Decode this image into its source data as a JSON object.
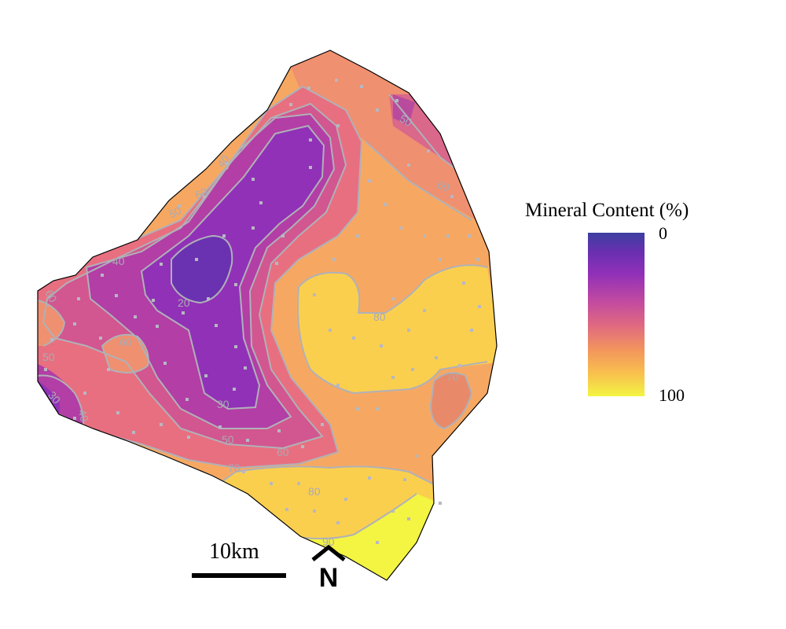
{
  "legend": {
    "title": "Mineral Content (%)",
    "min_label": "0",
    "max_label": "100",
    "colors": [
      "#3b3fa0",
      "#6a2fb0",
      "#9030b8",
      "#c24aa0",
      "#e06a80",
      "#f3965c",
      "#f8c04e",
      "#f4f443"
    ]
  },
  "scale_bar": {
    "label": "10km"
  },
  "north_arrow": {
    "label": "N"
  },
  "contour_labels": [
    "20",
    "30",
    "30",
    "40",
    "40",
    "40",
    "50",
    "50",
    "50",
    "50",
    "60",
    "60",
    "60",
    "60",
    "60",
    "70",
    "70",
    "80",
    "80",
    "90"
  ]
}
